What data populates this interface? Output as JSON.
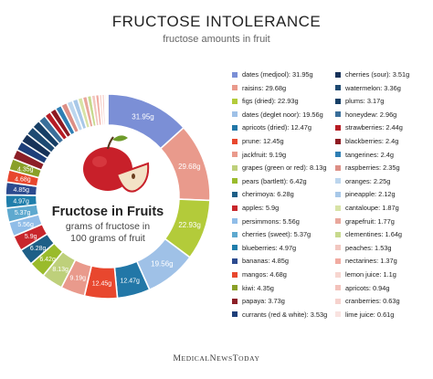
{
  "header": {
    "title": "FRUCTOSE INTOLERANCE",
    "subtitle": "fructose amounts in fruit"
  },
  "center": {
    "heading": "Fructose in Fruits",
    "line1": "grams of fructose in",
    "line2": "100 grams of fruit"
  },
  "footer": {
    "brand_big1": "M",
    "brand_small1": "EDICAL",
    "brand_big2": "N",
    "brand_small2": "EWS",
    "brand_big3": "T",
    "brand_small3": "ODAY"
  },
  "icons": {
    "center_image": "apple-icon"
  },
  "chart_data": {
    "type": "pie",
    "unit": "g",
    "slices": [
      {
        "label": "dates (medjool)",
        "value": 31.95,
        "color": "#7b8fd6"
      },
      {
        "label": "raisins",
        "value": 29.68,
        "color": "#e99a8c"
      },
      {
        "label": "figs (dried)",
        "value": 22.93,
        "color": "#b3cb3a"
      },
      {
        "label": "dates (deglet noor)",
        "value": 19.56,
        "color": "#9fc1e7"
      },
      {
        "label": "apricots (dried)",
        "value": 12.47,
        "color": "#2277a7"
      },
      {
        "label": "prune",
        "value": 12.45,
        "color": "#e8472e"
      },
      {
        "label": "jackfruit",
        "value": 9.19,
        "color": "#e99a8c"
      },
      {
        "label": "grapes (green or red)",
        "value": 8.13,
        "color": "#bed07b"
      },
      {
        "label": "pears (bartlett)",
        "value": 6.42,
        "color": "#9abb2c"
      },
      {
        "label": "cherimoya",
        "value": 6.28,
        "color": "#1e5f87"
      },
      {
        "label": "apples",
        "value": 5.9,
        "color": "#c8262c"
      },
      {
        "label": "persimmons",
        "value": 5.56,
        "color": "#90bde8"
      },
      {
        "label": "cherries (sweet)",
        "value": 5.37,
        "color": "#5ea9cf"
      },
      {
        "label": "blueberries",
        "value": 4.97,
        "color": "#1f7eab"
      },
      {
        "label": "bananas",
        "value": 4.85,
        "color": "#2c4b8f"
      },
      {
        "label": "mangos",
        "value": 4.68,
        "color": "#e8472e"
      },
      {
        "label": "kiwi",
        "value": 4.35,
        "color": "#8aa028"
      },
      {
        "label": "papaya",
        "value": 3.73,
        "color": "#8c1f27"
      },
      {
        "label": "currants (red & white)",
        "value": 3.53,
        "color": "#1e3f7a"
      },
      {
        "label": "cherries (sour)",
        "value": 3.51,
        "color": "#173259"
      },
      {
        "label": "watermelon",
        "value": 3.36,
        "color": "#1e4a72"
      },
      {
        "label": "plums",
        "value": 3.17,
        "color": "#163f66"
      },
      {
        "label": "honeydew",
        "value": 2.96,
        "color": "#3a6f9a"
      },
      {
        "label": "strawberries",
        "value": 2.44,
        "color": "#b71c24"
      },
      {
        "label": "blackberries",
        "value": 2.4,
        "color": "#8e1a22"
      },
      {
        "label": "tangerines",
        "value": 2.4,
        "color": "#2f7fb4"
      },
      {
        "label": "raspberries",
        "value": 2.35,
        "color": "#dd8f86"
      },
      {
        "label": "oranges",
        "value": 2.25,
        "color": "#bcd6ee"
      },
      {
        "label": "pineapple",
        "value": 2.12,
        "color": "#a8c8e8"
      },
      {
        "label": "cantaloupe",
        "value": 1.87,
        "color": "#d8e3a6"
      },
      {
        "label": "grapefruit",
        "value": 1.77,
        "color": "#e9a79c"
      },
      {
        "label": "clementines",
        "value": 1.64,
        "color": "#c7d98d"
      },
      {
        "label": "peaches",
        "value": 1.53,
        "color": "#f2c7c0"
      },
      {
        "label": "nectarines",
        "value": 1.37,
        "color": "#f1aba1"
      },
      {
        "label": "lemon juice",
        "value": 1.1,
        "color": "#f7d6d0"
      },
      {
        "label": "apricots",
        "value": 0.94,
        "color": "#f3c2bb"
      },
      {
        "label": "cranberries",
        "value": 0.63,
        "color": "#f6d2cd"
      },
      {
        "label": "lime juice",
        "value": 0.61,
        "color": "#f9e3e0"
      }
    ],
    "legend": "right, two columns"
  }
}
